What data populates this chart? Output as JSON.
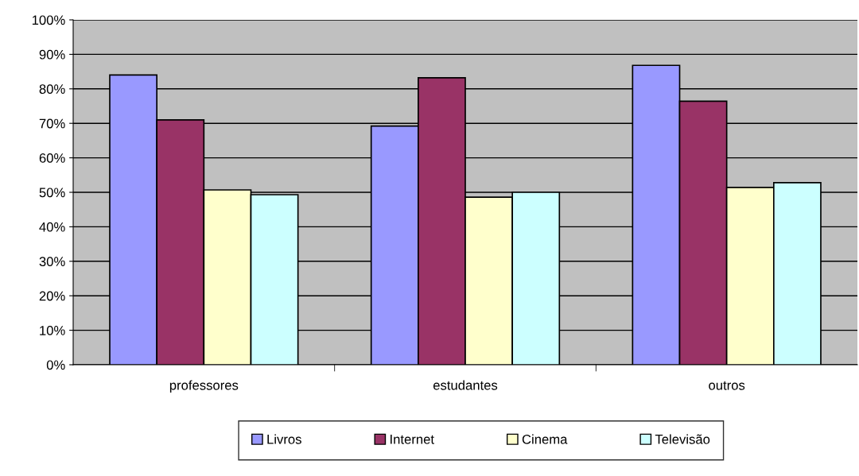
{
  "chart_data": {
    "type": "bar",
    "categories": [
      "professores",
      "estudantes",
      "outros"
    ],
    "series": [
      {
        "name": "Livros",
        "color": "#9999ff",
        "values": [
          84.0,
          69.2,
          86.8
        ]
      },
      {
        "name": "Internet",
        "color": "#993366",
        "values": [
          71.0,
          83.2,
          76.4
        ]
      },
      {
        "name": "Cinema",
        "color": "#ffffcc",
        "values": [
          50.7,
          48.6,
          51.4
        ]
      },
      {
        "name": "Televisão",
        "color": "#ccffff",
        "values": [
          49.3,
          50.0,
          52.8
        ]
      }
    ],
    "ylim": [
      0,
      100
    ],
    "yticks": [
      {
        "value": 0,
        "label": "0%"
      },
      {
        "value": 10,
        "label": "10%"
      },
      {
        "value": 20,
        "label": "20%"
      },
      {
        "value": 30,
        "label": "30%"
      },
      {
        "value": 40,
        "label": "40%"
      },
      {
        "value": 50,
        "label": "50%"
      },
      {
        "value": 60,
        "label": "60%"
      },
      {
        "value": 70,
        "label": "70%"
      },
      {
        "value": 80,
        "label": "80%"
      },
      {
        "value": 90,
        "label": "90%"
      },
      {
        "value": 100,
        "label": "100%"
      }
    ],
    "grid": "y",
    "legend": "bottom"
  }
}
